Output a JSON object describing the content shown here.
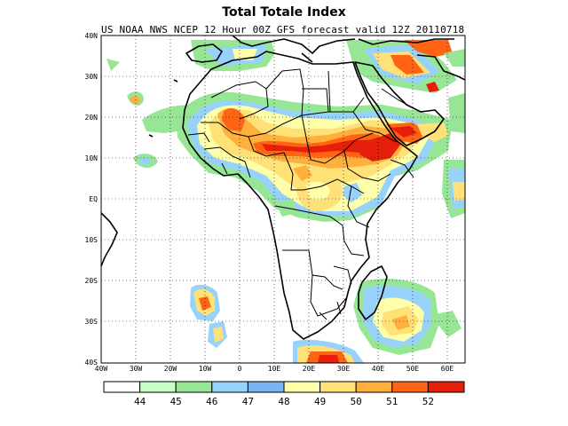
{
  "title": "Total Totale Index",
  "subtitle": "US NOAA NWS NCEP 12 Hour 00Z GFS forecast valid 12Z 20110718",
  "map": {
    "lon_range": [
      -40,
      65
    ],
    "lat_range": [
      -40,
      40
    ],
    "lon_labels": [
      "40W",
      "30W",
      "20W",
      "10W",
      "0",
      "10E",
      "20E",
      "30E",
      "40E",
      "50E",
      "60E"
    ],
    "lat_labels": [
      "40N",
      "30N",
      "20N",
      "10N",
      "EQ",
      "10S",
      "20S",
      "30S",
      "40S"
    ],
    "grid": "dotted"
  },
  "colorbar": {
    "levels": [
      "44",
      "45",
      "46",
      "47",
      "48",
      "49",
      "50",
      "51",
      "52"
    ],
    "colors": [
      "#ffffff",
      "#c8ffc8",
      "#96e696",
      "#96d2fa",
      "#78b4f0",
      "#ffffaa",
      "#ffe178",
      "#ffaf3c",
      "#ff6414",
      "#e61e0a"
    ]
  }
}
